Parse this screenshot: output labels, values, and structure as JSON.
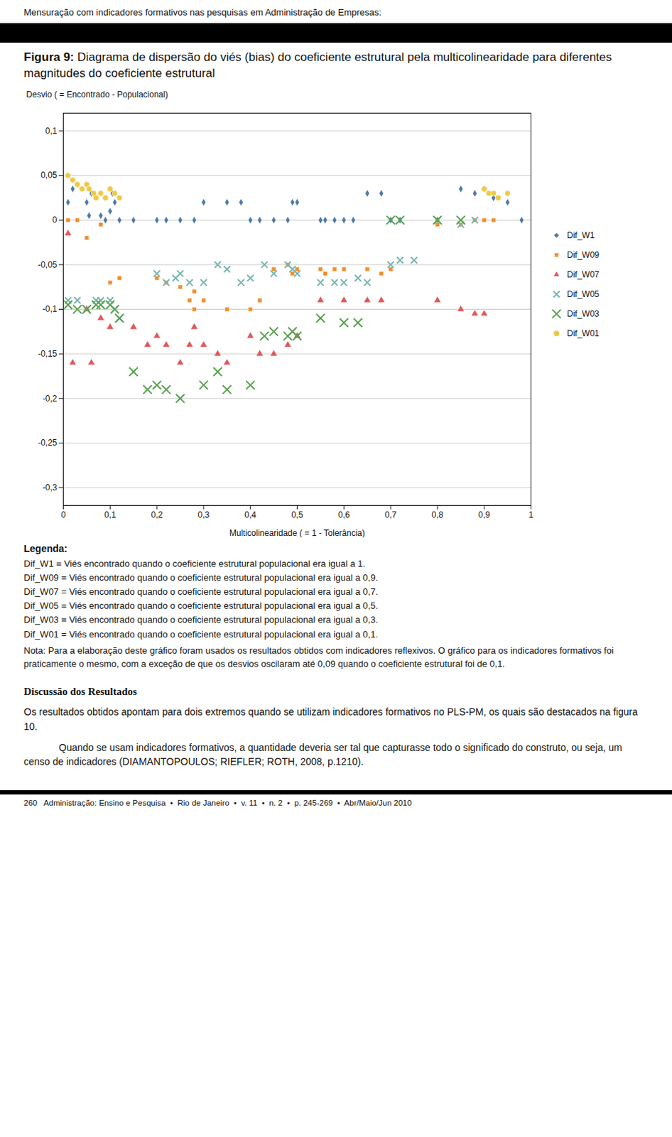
{
  "chart_data": {
    "type": "scatter",
    "title": "Figura 9: Diagrama de dispersão do viés (bias) do coeficiente estrutural pela multicolinearidade para diferentes magnitudes do coeficiente estrutural",
    "x_label": "Multicolinearidade ( = 1 - Tolerância)",
    "y_label": "Desvio ( = Encontrado - Populacional)",
    "xlim": [
      0,
      1.0
    ],
    "ylim": [
      -0.32,
      0.12
    ],
    "xticks": [
      0,
      {
        "value": 0.1,
        "label": "0,1"
      },
      {
        "value": 0.2,
        "label": "0,2"
      },
      {
        "value": 0.3,
        "label": "0,3"
      },
      {
        "value": 0.4,
        "label": "0,4"
      },
      {
        "value": 0.5,
        "label": "0,5"
      },
      {
        "value": 0.6,
        "label": "0,6"
      },
      {
        "value": 0.7,
        "label": "0,7"
      },
      {
        "value": 0.8,
        "label": "0,8"
      },
      {
        "value": 0.9,
        "label": "0,9"
      },
      1
    ],
    "yticks": [
      {
        "value": 0.1,
        "label": "0,1"
      },
      {
        "value": 0.05,
        "label": "0,05"
      },
      0,
      {
        "value": -0.05,
        "label": "-0,05"
      },
      {
        "value": -0.1,
        "label": "-0,1"
      },
      {
        "value": -0.15,
        "label": "-0,15"
      },
      {
        "value": -0.2,
        "label": "-0,2"
      },
      {
        "value": -0.25,
        "label": "-0,25"
      },
      {
        "value": -0.3,
        "label": "-0,3"
      }
    ],
    "grid": "y",
    "legend": "right",
    "series": [
      {
        "name": "Dif_W1",
        "marker": "diamond",
        "x": [
          0.01,
          0.02,
          0.03,
          0.05,
          0.055,
          0.06,
          0.08,
          0.09,
          0.1,
          0.105,
          0.11,
          0.12,
          0.15,
          0.2,
          0.22,
          0.25,
          0.28,
          0.3,
          0.35,
          0.38,
          0.4,
          0.42,
          0.45,
          0.48,
          0.49,
          0.5,
          0.55,
          0.56,
          0.58,
          0.6,
          0.62,
          0.65,
          0.68,
          0.7,
          0.72,
          0.8,
          0.85,
          0.88,
          0.9,
          0.92,
          0.95,
          0.98
        ],
        "values": [
          0.02,
          0.035,
          0.04,
          0.02,
          0.005,
          0.03,
          0.005,
          0.0,
          0.01,
          0.03,
          0.02,
          0.0,
          0.0,
          0.0,
          0.0,
          0.0,
          0.0,
          0.02,
          0.02,
          0.02,
          0.0,
          0.0,
          0.0,
          0.0,
          0.02,
          0.02,
          0.0,
          0.0,
          0.0,
          0.0,
          0.0,
          0.03,
          0.03,
          0.0,
          0.0,
          0.0,
          0.035,
          0.03,
          0.035,
          0.025,
          0.02,
          0.0
        ]
      },
      {
        "name": "Dif_W09",
        "marker": "square",
        "x": [
          0.01,
          0.03,
          0.05,
          0.08,
          0.1,
          0.12,
          0.2,
          0.22,
          0.25,
          0.27,
          0.28,
          0.28,
          0.3,
          0.35,
          0.4,
          0.42,
          0.45,
          0.48,
          0.49,
          0.5,
          0.55,
          0.56,
          0.58,
          0.6,
          0.65,
          0.68,
          0.7,
          0.8,
          0.85,
          0.88,
          0.9,
          0.92
        ],
        "values": [
          0.0,
          0.0,
          -0.02,
          -0.005,
          -0.07,
          -0.065,
          -0.065,
          -0.07,
          -0.075,
          -0.09,
          -0.08,
          -0.1,
          -0.09,
          -0.1,
          -0.1,
          -0.09,
          -0.055,
          -0.05,
          -0.06,
          -0.055,
          -0.055,
          -0.06,
          -0.055,
          -0.055,
          -0.055,
          -0.06,
          -0.055,
          -0.005,
          -0.005,
          0.0,
          0.0,
          0.0
        ]
      },
      {
        "name": "Dif_W07",
        "marker": "triangle",
        "x": [
          0.01,
          0.02,
          0.05,
          0.06,
          0.08,
          0.1,
          0.15,
          0.18,
          0.2,
          0.22,
          0.25,
          0.27,
          0.28,
          0.3,
          0.33,
          0.35,
          0.4,
          0.42,
          0.45,
          0.48,
          0.5,
          0.55,
          0.6,
          0.65,
          0.68,
          0.8,
          0.85,
          0.88,
          0.9
        ],
        "values": [
          -0.015,
          -0.16,
          -0.1,
          -0.16,
          -0.11,
          -0.12,
          -0.12,
          -0.14,
          -0.13,
          -0.14,
          -0.16,
          -0.14,
          -0.12,
          -0.14,
          -0.15,
          -0.16,
          -0.13,
          -0.15,
          -0.15,
          -0.14,
          -0.13,
          -0.09,
          -0.09,
          -0.09,
          -0.09,
          -0.09,
          -0.1,
          -0.105,
          -0.105
        ]
      },
      {
        "name": "Dif_W05",
        "marker": "x",
        "x": [
          0.01,
          0.03,
          0.05,
          0.07,
          0.08,
          0.1,
          0.11,
          0.12,
          0.2,
          0.22,
          0.24,
          0.25,
          0.27,
          0.3,
          0.33,
          0.35,
          0.38,
          0.4,
          0.43,
          0.45,
          0.48,
          0.49,
          0.5,
          0.55,
          0.58,
          0.6,
          0.63,
          0.65,
          0.7,
          0.72,
          0.75,
          0.8,
          0.85,
          0.88
        ],
        "values": [
          -0.09,
          -0.09,
          -0.1,
          -0.09,
          -0.09,
          -0.09,
          -0.1,
          -0.11,
          -0.06,
          -0.07,
          -0.065,
          -0.06,
          -0.07,
          -0.07,
          -0.05,
          -0.055,
          -0.07,
          -0.065,
          -0.05,
          -0.06,
          -0.05,
          -0.055,
          -0.06,
          -0.07,
          -0.07,
          -0.07,
          -0.065,
          -0.07,
          -0.05,
          -0.045,
          -0.045,
          0.0,
          -0.005,
          0.0
        ]
      },
      {
        "name": "Dif_W03",
        "marker": "x",
        "x": [
          0.01,
          0.03,
          0.05,
          0.07,
          0.08,
          0.1,
          0.11,
          0.12,
          0.15,
          0.18,
          0.2,
          0.22,
          0.25,
          0.3,
          0.33,
          0.35,
          0.4,
          0.43,
          0.45,
          0.48,
          0.49,
          0.5,
          0.55,
          0.6,
          0.63,
          0.7,
          0.72,
          0.8,
          0.85
        ],
        "values": [
          -0.095,
          -0.1,
          -0.1,
          -0.095,
          -0.095,
          -0.095,
          -0.1,
          -0.11,
          -0.17,
          -0.19,
          -0.185,
          -0.19,
          -0.2,
          -0.185,
          -0.17,
          -0.19,
          -0.185,
          -0.13,
          -0.125,
          -0.13,
          -0.125,
          -0.13,
          -0.11,
          -0.115,
          -0.115,
          0.0,
          0.0,
          0.0,
          0.0
        ]
      },
      {
        "name": "Dif_W01",
        "marker": "circle",
        "x": [
          0.01,
          0.02,
          0.03,
          0.04,
          0.05,
          0.055,
          0.065,
          0.07,
          0.08,
          0.09,
          0.1,
          0.11,
          0.12,
          0.9,
          0.91,
          0.92,
          0.93,
          0.95
        ],
        "values": [
          0.05,
          0.045,
          0.04,
          0.035,
          0.04,
          0.035,
          0.03,
          0.025,
          0.03,
          0.025,
          0.035,
          0.03,
          0.025,
          0.035,
          0.03,
          0.03,
          0.025,
          0.03
        ]
      }
    ],
    "annotations": [
      "Mensuração com indicadores formativos nas pesquisas em Administração de Empresas:",
      "Legenda:",
      "Dif_W1 = Viés encontrado quando o coeficiente estrutural populacional era igual a 1.",
      "Dif_W09 = Viés encontrado quando o coeficiente estrutural populacional era igual a 0,9.",
      "Dif_W07 = Viés encontrado quando o coeficiente estrutural populacional era igual a 0,7.",
      "Dif_W05 = Viés encontrado quando o coeficiente estrutural populacional era igual a 0,5.",
      "Dif_W03 = Viés encontrado quando o coeficiente estrutural populacional era igual a 0,3.",
      "Dif_W01 = Viés encontrado quando o coeficiente estrutural populacional era igual a 0,1.",
      "Nota: Para a elaboração deste gráfico foram usados os resultados obtidos com indicadores reflexivos. O gráfico para os indicadores formativos foi praticamente o mesmo, com a exceção de que os desvios oscilaram até 0,09 quando o coeficiente estrutural foi de 0,1.",
      "Discussão dos Resultados",
      "Os resultados obtidos apontam para dois extremos quando se utilizam indicadores formativos no PLS-PM, os quais são destacados na figura 10.",
      "Quando se usam indicadores formativos, a quantidade deveria ser tal que capturasse todo o significado do construto, ou seja, um censo de indicadores (DIAMANTOPOULOS; RIEFLER; ROTH, 2008, p.1210).",
      "260   Administração: Ensino e Pesquisa  •  Rio de Janeiro  •  v. 11  •  n. 2  •  p. 245-269  •  Abr/Maio/Jun 2010"
    ]
  }
}
